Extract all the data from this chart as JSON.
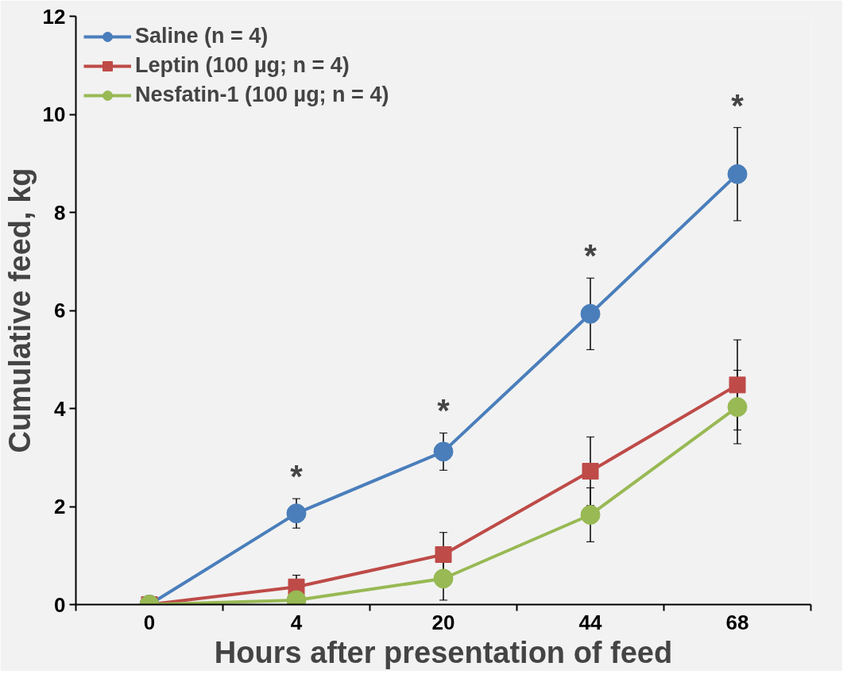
{
  "chart_data": {
    "type": "line",
    "xlabel": "Hours after presentation of feed",
    "ylabel": "Cumulative feed, kg",
    "categories": [
      "0",
      "4",
      "20",
      "44",
      "68"
    ],
    "series": [
      {
        "name": "Saline (n = 4)",
        "color": "#4a7ebb",
        "marker": "circle",
        "values": [
          0,
          1.86,
          3.12,
          5.93,
          8.78
        ],
        "errors": [
          null,
          0.3,
          0.38,
          0.73,
          0.95
        ]
      },
      {
        "name": "Leptin (100 µg; n = 4)",
        "color": "#be4b48",
        "marker": "square",
        "values": [
          0,
          0.36,
          1.02,
          2.72,
          4.48
        ],
        "errors": [
          null,
          0.24,
          0.45,
          0.7,
          0.92
        ]
      },
      {
        "name": "Nesfatin-1 (100 µg; n = 4)",
        "color": "#98b954",
        "marker": "circle",
        "values": [
          0,
          0.09,
          0.53,
          1.83,
          4.03
        ],
        "errors": [
          null,
          null,
          0.44,
          0.55,
          0.75
        ]
      }
    ],
    "ylim": [
      0,
      12
    ],
    "yticks": [
      0,
      2,
      4,
      6,
      8,
      10,
      12
    ],
    "grid": false,
    "legend": "top left",
    "annotations": [
      {
        "text": "*",
        "x": "4",
        "y": 1.86
      },
      {
        "text": "*",
        "x": "20",
        "y": 3.12
      },
      {
        "text": "*",
        "x": "44",
        "y": 5.93
      },
      {
        "text": "*",
        "x": "68",
        "y": 8.78
      }
    ]
  }
}
